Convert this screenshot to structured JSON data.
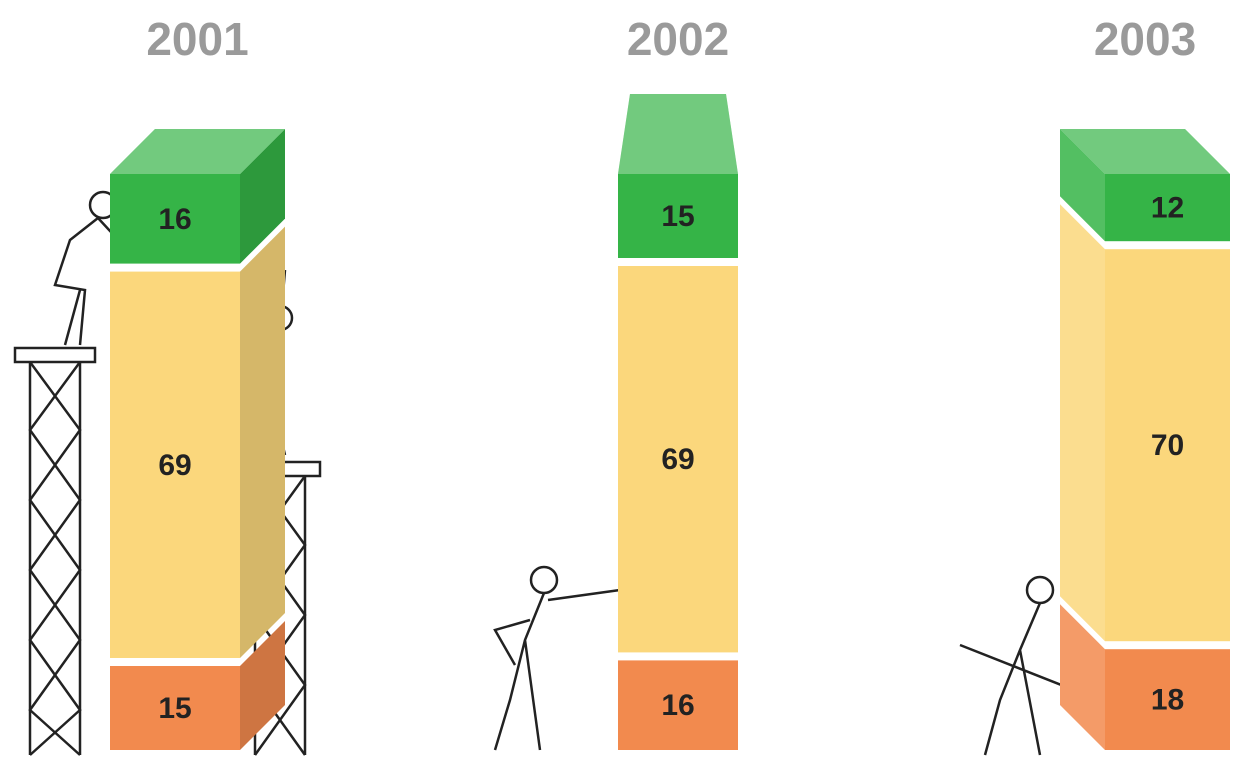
{
  "chart_data": {
    "type": "stacked-bar",
    "categories": [
      "2001",
      "2002",
      "2003"
    ],
    "series": [
      {
        "color": "#f28a4e",
        "values": [
          15,
          16,
          18
        ]
      },
      {
        "color": "#fbd77c",
        "values": [
          69,
          69,
          70
        ]
      },
      {
        "color": "#35b447",
        "values": [
          16,
          15,
          12
        ]
      }
    ]
  }
}
